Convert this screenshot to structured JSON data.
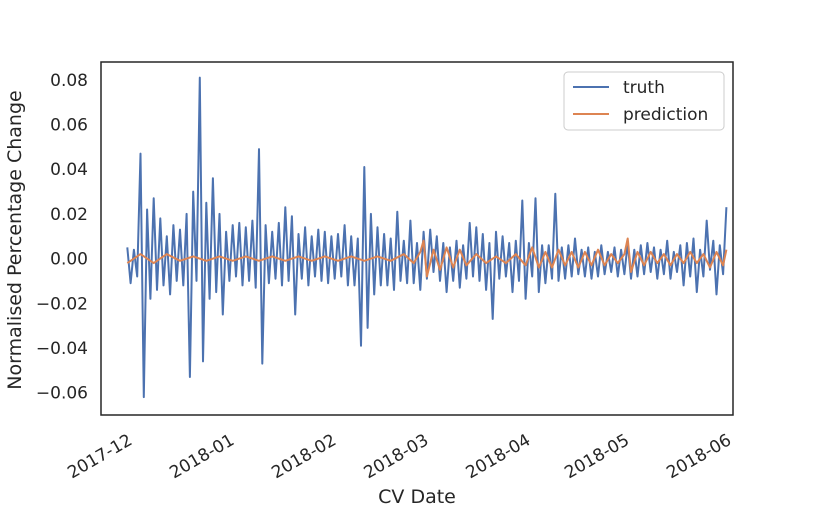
{
  "chart_data": {
    "type": "line",
    "title": "",
    "xlabel": "CV Date",
    "ylabel": "Normalised Percentage Change",
    "x_range": [
      "2017-11-23",
      "2018-06-03"
    ],
    "ylim": [
      -0.07,
      0.088
    ],
    "y_ticks": [
      0.08,
      0.06,
      0.04,
      0.02,
      0.0,
      -0.02,
      -0.04,
      -0.06
    ],
    "y_tick_labels": [
      "0.08",
      "0.06",
      "0.04",
      "0.02",
      "0.00",
      "−0.02",
      "−0.04",
      "−0.06"
    ],
    "x_ticks": [
      "2017-12-01",
      "2018-01-01",
      "2018-02-01",
      "2018-03-01",
      "2018-04-01",
      "2018-05-01",
      "2018-06-01"
    ],
    "x_tick_labels": [
      "2017-12",
      "2018-01",
      "2018-02",
      "2018-03",
      "2018-04",
      "2018-05",
      "2018-06"
    ],
    "grid": false,
    "legend_position": "top-right",
    "series": [
      {
        "name": "truth",
        "color": "#4c72b0",
        "x": [
          "2017-12-01",
          "2017-12-02",
          "2017-12-03",
          "2017-12-04",
          "2017-12-05",
          "2017-12-06",
          "2017-12-07",
          "2017-12-08",
          "2017-12-09",
          "2017-12-10",
          "2017-12-11",
          "2017-12-12",
          "2017-12-13",
          "2017-12-14",
          "2017-12-15",
          "2017-12-16",
          "2017-12-17",
          "2017-12-18",
          "2017-12-19",
          "2017-12-20",
          "2017-12-21",
          "2017-12-22",
          "2017-12-23",
          "2017-12-24",
          "2017-12-25",
          "2017-12-26",
          "2017-12-27",
          "2017-12-28",
          "2017-12-29",
          "2017-12-30",
          "2017-12-31",
          "2018-01-01",
          "2018-01-02",
          "2018-01-03",
          "2018-01-04",
          "2018-01-05",
          "2018-01-06",
          "2018-01-07",
          "2018-01-08",
          "2018-01-09",
          "2018-01-10",
          "2018-01-11",
          "2018-01-12",
          "2018-01-13",
          "2018-01-14",
          "2018-01-15",
          "2018-01-16",
          "2018-01-17",
          "2018-01-18",
          "2018-01-19",
          "2018-01-20",
          "2018-01-21",
          "2018-01-22",
          "2018-01-23",
          "2018-01-24",
          "2018-01-25",
          "2018-01-26",
          "2018-01-27",
          "2018-01-28",
          "2018-01-29",
          "2018-01-30",
          "2018-01-31",
          "2018-02-01",
          "2018-02-02",
          "2018-02-03",
          "2018-02-04",
          "2018-02-05",
          "2018-02-06",
          "2018-02-07",
          "2018-02-08",
          "2018-02-09",
          "2018-02-10",
          "2018-02-11",
          "2018-02-12",
          "2018-02-13",
          "2018-02-14",
          "2018-02-15",
          "2018-02-16",
          "2018-02-17",
          "2018-02-18",
          "2018-02-19",
          "2018-02-20",
          "2018-02-21",
          "2018-02-22",
          "2018-02-23",
          "2018-02-24",
          "2018-02-25",
          "2018-02-26",
          "2018-02-27",
          "2018-02-28",
          "2018-03-01",
          "2018-03-02",
          "2018-03-03",
          "2018-03-04",
          "2018-03-05",
          "2018-03-06",
          "2018-03-07",
          "2018-03-08",
          "2018-03-09",
          "2018-03-10",
          "2018-03-11",
          "2018-03-12",
          "2018-03-13",
          "2018-03-14",
          "2018-03-15",
          "2018-03-16",
          "2018-03-17",
          "2018-03-18",
          "2018-03-19",
          "2018-03-20",
          "2018-03-21",
          "2018-03-22",
          "2018-03-23",
          "2018-03-24",
          "2018-03-25",
          "2018-03-26",
          "2018-03-27",
          "2018-03-28",
          "2018-03-29",
          "2018-03-30",
          "2018-03-31",
          "2018-04-01",
          "2018-04-02",
          "2018-04-03",
          "2018-04-04",
          "2018-04-05",
          "2018-04-06",
          "2018-04-07",
          "2018-04-08",
          "2018-04-09",
          "2018-04-10",
          "2018-04-11",
          "2018-04-12",
          "2018-04-13",
          "2018-04-14",
          "2018-04-15",
          "2018-04-16",
          "2018-04-17",
          "2018-04-18",
          "2018-04-19",
          "2018-04-20",
          "2018-04-21",
          "2018-04-22",
          "2018-04-23",
          "2018-04-24",
          "2018-04-25",
          "2018-04-26",
          "2018-04-27",
          "2018-04-28",
          "2018-04-29",
          "2018-04-30",
          "2018-05-01",
          "2018-05-02",
          "2018-05-03",
          "2018-05-04",
          "2018-05-05",
          "2018-05-06",
          "2018-05-07",
          "2018-05-08",
          "2018-05-09",
          "2018-05-10",
          "2018-05-11",
          "2018-05-12",
          "2018-05-13",
          "2018-05-14",
          "2018-05-15",
          "2018-05-16",
          "2018-05-17",
          "2018-05-18",
          "2018-05-19",
          "2018-05-20",
          "2018-05-21",
          "2018-05-22",
          "2018-05-23",
          "2018-05-24",
          "2018-05-25",
          "2018-05-26",
          "2018-05-27",
          "2018-05-28",
          "2018-05-29",
          "2018-05-30",
          "2018-05-31",
          "2018-06-01"
        ],
        "y": [
          0.005,
          -0.011,
          0.004,
          -0.008,
          0.047,
          -0.062,
          0.022,
          -0.018,
          0.027,
          -0.014,
          0.018,
          -0.012,
          0.01,
          -0.016,
          0.015,
          -0.01,
          0.013,
          -0.012,
          0.02,
          -0.053,
          0.03,
          -0.01,
          0.081,
          -0.046,
          0.025,
          -0.018,
          0.036,
          -0.015,
          0.02,
          -0.025,
          0.012,
          -0.01,
          0.015,
          -0.008,
          0.016,
          -0.012,
          0.014,
          -0.01,
          0.017,
          -0.013,
          0.049,
          -0.047,
          0.015,
          -0.011,
          0.012,
          -0.009,
          0.016,
          -0.012,
          0.023,
          -0.01,
          0.019,
          -0.025,
          0.011,
          -0.009,
          0.014,
          -0.012,
          0.01,
          -0.008,
          0.013,
          -0.01,
          0.012,
          -0.011,
          0.01,
          -0.009,
          0.011,
          -0.008,
          0.015,
          -0.012,
          0.01,
          -0.012,
          0.009,
          -0.039,
          0.041,
          -0.031,
          0.02,
          -0.016,
          0.014,
          -0.012,
          0.011,
          -0.012,
          0.009,
          -0.014,
          0.021,
          -0.01,
          0.008,
          -0.011,
          0.017,
          -0.011,
          0.007,
          -0.014,
          0.012,
          -0.009,
          0.013,
          -0.006,
          0.01,
          -0.01,
          0.007,
          -0.015,
          0.005,
          -0.01,
          0.008,
          -0.013,
          0.006,
          -0.009,
          0.016,
          -0.008,
          0.014,
          -0.01,
          0.011,
          -0.014,
          0.007,
          -0.027,
          0.012,
          -0.009,
          0.01,
          -0.008,
          0.007,
          -0.015,
          0.008,
          -0.01,
          0.026,
          -0.018,
          0.007,
          -0.008,
          0.027,
          -0.015,
          0.006,
          -0.011,
          0.006,
          -0.009,
          0.029,
          -0.01,
          0.005,
          -0.009,
          0.006,
          -0.008,
          0.009,
          -0.007,
          0.004,
          -0.008,
          0.005,
          -0.009,
          0.003,
          -0.008,
          0.006,
          -0.007,
          0.003,
          -0.006,
          0.005,
          -0.008,
          0.004,
          -0.007,
          0.007,
          -0.009,
          0.004,
          -0.008,
          0.006,
          -0.007,
          0.007,
          -0.006,
          0.005,
          -0.009,
          0.004,
          -0.007,
          0.008,
          -0.009,
          0.003,
          -0.006,
          0.006,
          -0.012,
          0.007,
          -0.008,
          0.009,
          -0.015,
          0.004,
          -0.008,
          0.017,
          -0.005,
          0.008,
          -0.016,
          0.006,
          -0.007,
          0.023
        ]
      },
      {
        "name": "prediction",
        "color": "#dd8452",
        "x": [
          "2017-12-01",
          "2017-12-05",
          "2017-12-09",
          "2017-12-13",
          "2017-12-17",
          "2017-12-21",
          "2017-12-25",
          "2017-12-29",
          "2018-01-02",
          "2018-01-06",
          "2018-01-10",
          "2018-01-14",
          "2018-01-18",
          "2018-01-22",
          "2018-01-26",
          "2018-01-30",
          "2018-02-03",
          "2018-02-07",
          "2018-02-11",
          "2018-02-15",
          "2018-02-19",
          "2018-02-23",
          "2018-02-26",
          "2018-02-28",
          "2018-03-01",
          "2018-03-02",
          "2018-03-04",
          "2018-03-06",
          "2018-03-08",
          "2018-03-10",
          "2018-03-12",
          "2018-03-14",
          "2018-03-17",
          "2018-03-20",
          "2018-03-23",
          "2018-03-26",
          "2018-03-29",
          "2018-04-01",
          "2018-04-03",
          "2018-04-05",
          "2018-04-07",
          "2018-04-09",
          "2018-04-11",
          "2018-04-13",
          "2018-04-15",
          "2018-04-17",
          "2018-04-19",
          "2018-04-21",
          "2018-04-23",
          "2018-04-25",
          "2018-04-27",
          "2018-04-29",
          "2018-05-01",
          "2018-05-02",
          "2018-05-03",
          "2018-05-05",
          "2018-05-07",
          "2018-05-09",
          "2018-05-11",
          "2018-05-13",
          "2018-05-15",
          "2018-05-17",
          "2018-05-19",
          "2018-05-21",
          "2018-05-23",
          "2018-05-25",
          "2018-05-27",
          "2018-05-29",
          "2018-05-31",
          "2018-06-01"
        ],
        "y": [
          -0.002,
          0.002,
          -0.002,
          0.002,
          -0.001,
          0.001,
          -0.001,
          0.001,
          -0.001,
          0.001,
          -0.001,
          0.001,
          -0.001,
          0.001,
          -0.001,
          0.001,
          -0.001,
          0.001,
          -0.001,
          0.001,
          -0.001,
          0.002,
          -0.002,
          0.003,
          0.008,
          -0.008,
          0.004,
          -0.005,
          0.005,
          -0.004,
          0.004,
          -0.003,
          0.002,
          -0.002,
          0.001,
          -0.002,
          0.002,
          -0.003,
          0.005,
          -0.004,
          0.003,
          -0.004,
          0.004,
          -0.003,
          0.003,
          -0.004,
          0.003,
          -0.003,
          0.004,
          -0.003,
          0.002,
          -0.002,
          0.002,
          0.009,
          -0.006,
          0.003,
          -0.003,
          0.003,
          -0.002,
          0.002,
          -0.003,
          0.002,
          -0.002,
          0.003,
          -0.002,
          0.002,
          -0.004,
          0.003,
          -0.003,
          0.004
        ]
      }
    ]
  }
}
